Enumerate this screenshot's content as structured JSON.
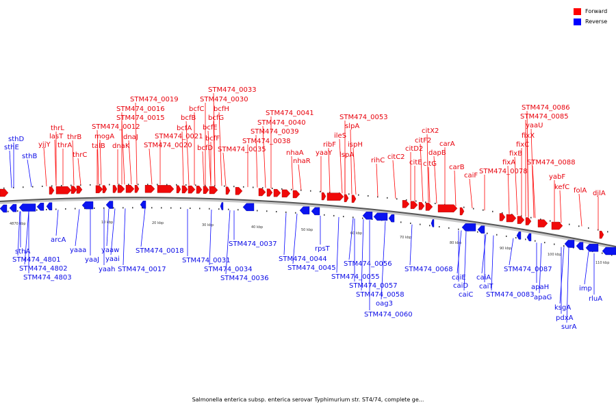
{
  "legend": [
    {
      "label": "Forward",
      "color": "#ff0000"
    },
    {
      "label": "Reverse",
      "color": "#0000ff"
    }
  ],
  "caption": "Salmonella enterica subsp. enterica serovar Typhimurium str. ST4/74, complete ge...",
  "ticks": [
    "4870 kbp",
    "10 kbp",
    "20 kbp",
    "30 kbp",
    "40 kbp",
    "50 kbp",
    "60 kbp",
    "70 kbp",
    "80 kbp",
    "90 kbp",
    "100 kbp",
    "110 kbp"
  ],
  "forward_labels": [
    "thrL",
    "lasT",
    "yjjY",
    "thrA",
    "thrB",
    "thrC",
    "talB",
    "mogA",
    "dnaJ",
    "dnaK",
    "STM474_0012",
    "STM474_0015",
    "STM474_0016",
    "STM474_0019",
    "STM474_0020",
    "STM474_0021",
    "bcfA",
    "bcfB",
    "bcfC",
    "bcfD",
    "bcfE",
    "bcfF",
    "bcfG",
    "bcfH",
    "STM474_0030",
    "STM474_0033",
    "STM474_0035",
    "STM474_0038",
    "STM474_0039",
    "STM474_0040",
    "STM474_0041",
    "nhaA",
    "nhaR",
    "yaaY",
    "ribF",
    "ileS",
    "lspA",
    "slpA",
    "ispH",
    "STM474_0053",
    "rihC",
    "citC2",
    "citD2",
    "citX2",
    "citF2",
    "citE",
    "citG",
    "dapB",
    "carA",
    "carB",
    "caiF",
    "STM474_0078",
    "fixA",
    "fixB",
    "fixC",
    "fixX",
    "yaaU",
    "STM474_0085",
    "STM474_0086",
    "STM474_0088",
    "yabF",
    "kefC",
    "folA",
    "djlA"
  ],
  "reverse_labels": [
    "sthD",
    "sthE",
    "sthB",
    "sthA",
    "STM474_4801",
    "STM474_4802",
    "STM474_4803",
    "arcA",
    "yaaa",
    "yaaJ",
    "yaaw",
    "yaai",
    "yaah",
    "STM474_0017",
    "STM474_0018",
    "STM474_0031",
    "STM474_0034",
    "STM474_0036",
    "STM474_0037",
    "STM474_0044",
    "STM474_0045",
    "rpsT",
    "STM474_0055",
    "STM474_0056",
    "STM474_0057",
    "STM474_0058",
    "oag3",
    "STM474_0060",
    "STM474_0068",
    "caiE",
    "caiD",
    "caiC",
    "caiA",
    "caiT",
    "STM474_0083",
    "STM474_0087",
    "apaH",
    "apaG",
    "ksgA",
    "pdxA",
    "surA",
    "imp",
    "rluA"
  ]
}
